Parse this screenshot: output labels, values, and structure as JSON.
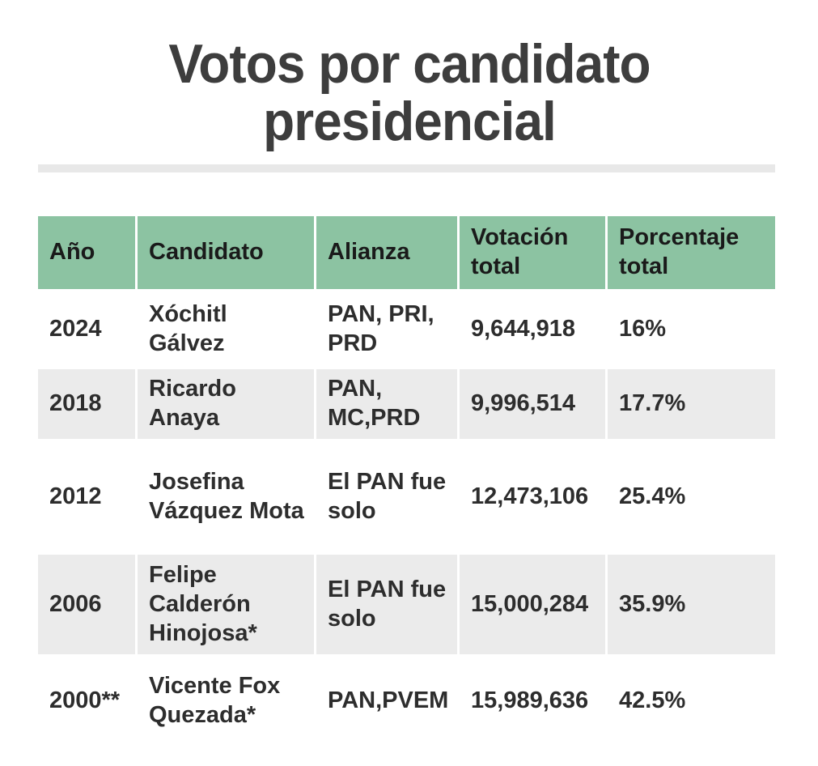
{
  "title": {
    "text": "Votos por candidato presidencial"
  },
  "colors": {
    "header-bg": "#8cc3a2",
    "alt-row-bg": "#ebebeb",
    "divider-color": "#e8e8e8",
    "title-color": "#3d3d3d",
    "header-text": "#1a1a1a",
    "body-text": "#2d2d2d"
  },
  "table": {
    "columns": [
      "Año",
      "Candidato",
      "Alianza",
      "Votación total",
      "Porcentaje total"
    ],
    "rows": [
      {
        "year": "2024",
        "candidate": "Xóchitl Gálvez",
        "alliance": "PAN, PRI, PRD",
        "votes": "9,644,918",
        "percent": "16%"
      },
      {
        "year": "2018",
        "candidate": "Ricardo Anaya",
        "alliance": "PAN, MC,PRD",
        "votes": "9,996,514",
        "percent": "17.7%"
      },
      {
        "year": "2012",
        "candidate": "Josefina Vázquez Mota",
        "alliance": "El PAN fue solo",
        "votes": "12,473,106",
        "percent": "25.4%"
      },
      {
        "year": "2006",
        "candidate": "Felipe Calderón Hinojosa*",
        "alliance": "El PAN fue solo",
        "votes": "15,000,284",
        "percent": "35.9%"
      },
      {
        "year": "2000**",
        "candidate": "Vicente Fox Quezada*",
        "alliance": "PAN,PVEM",
        "votes": "15,989,636",
        "percent": "42.5%"
      }
    ]
  },
  "chart_data": {
    "type": "table",
    "title": "Votos por candidato presidencial",
    "columns": [
      "Año",
      "Candidato",
      "Alianza",
      "Votación total",
      "Porcentaje total"
    ],
    "rows": [
      [
        "2024",
        "Xóchitl Gálvez",
        "PAN, PRI, PRD",
        "9,644,918",
        "16%"
      ],
      [
        "2018",
        "Ricardo Anaya",
        "PAN, MC,PRD",
        "9,996,514",
        "17.7%"
      ],
      [
        "2012",
        "Josefina Vázquez Mota",
        "El PAN fue solo",
        "12,473,106",
        "25.4%"
      ],
      [
        "2006",
        "Felipe Calderón Hinojosa*",
        "El PAN fue solo",
        "15,000,284",
        "35.9%"
      ],
      [
        "2000**",
        "Vicente Fox Quezada*",
        "PAN,PVEM",
        "15,989,636",
        "42.5%"
      ]
    ],
    "votes_numeric": [
      9644918,
      9996514,
      12473106,
      15000284,
      15989636
    ],
    "percent_numeric": [
      16,
      17.7,
      25.4,
      35.9,
      42.5
    ]
  }
}
